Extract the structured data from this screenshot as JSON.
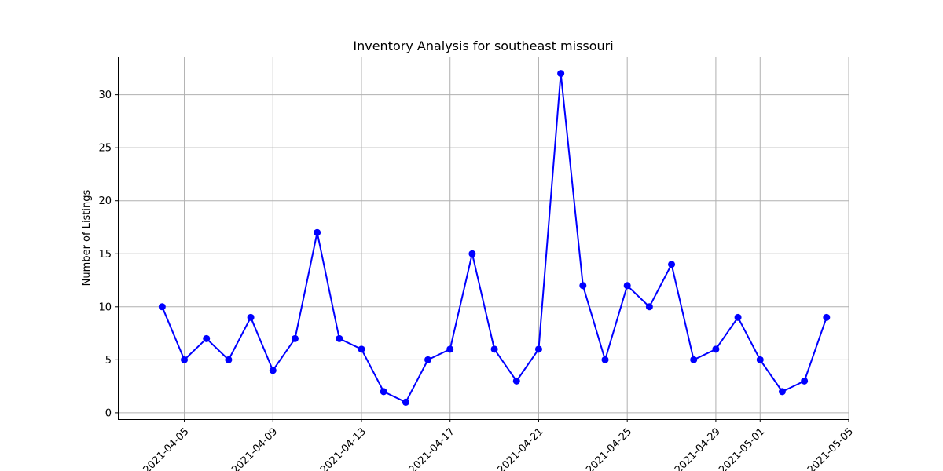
{
  "chart_data": {
    "type": "line",
    "title": "Inventory Analysis for southeast missouri",
    "xlabel": "",
    "ylabel": "Number of Listings",
    "x": [
      "2021-04-04",
      "2021-04-05",
      "2021-04-06",
      "2021-04-07",
      "2021-04-08",
      "2021-04-09",
      "2021-04-10",
      "2021-04-11",
      "2021-04-12",
      "2021-04-13",
      "2021-04-14",
      "2021-04-15",
      "2021-04-16",
      "2021-04-17",
      "2021-04-18",
      "2021-04-19",
      "2021-04-20",
      "2021-04-21",
      "2021-04-22",
      "2021-04-23",
      "2021-04-24",
      "2021-04-25",
      "2021-04-26",
      "2021-04-27",
      "2021-04-28",
      "2021-04-29",
      "2021-04-30",
      "2021-05-01",
      "2021-05-02",
      "2021-05-03",
      "2021-05-04"
    ],
    "series": [
      {
        "color": "#0000ff",
        "marker": "circle",
        "values": [
          10,
          5,
          7,
          5,
          9,
          4,
          7,
          17,
          7,
          6,
          2,
          1,
          5,
          6,
          15,
          6,
          3,
          6,
          32,
          12,
          5,
          12,
          10,
          14,
          5,
          6,
          9,
          5,
          2,
          3,
          9
        ]
      }
    ],
    "xticks": [
      "2021-04-05",
      "2021-04-09",
      "2021-04-13",
      "2021-04-17",
      "2021-04-21",
      "2021-04-25",
      "2021-04-29",
      "2021-05-01",
      "2021-05-05"
    ],
    "yticks": [
      0,
      5,
      10,
      15,
      20,
      25,
      30
    ],
    "xlim": [
      "2021-04-02",
      "2021-05-05"
    ],
    "ylim": [
      -0.6,
      33.6
    ],
    "grid": true
  }
}
